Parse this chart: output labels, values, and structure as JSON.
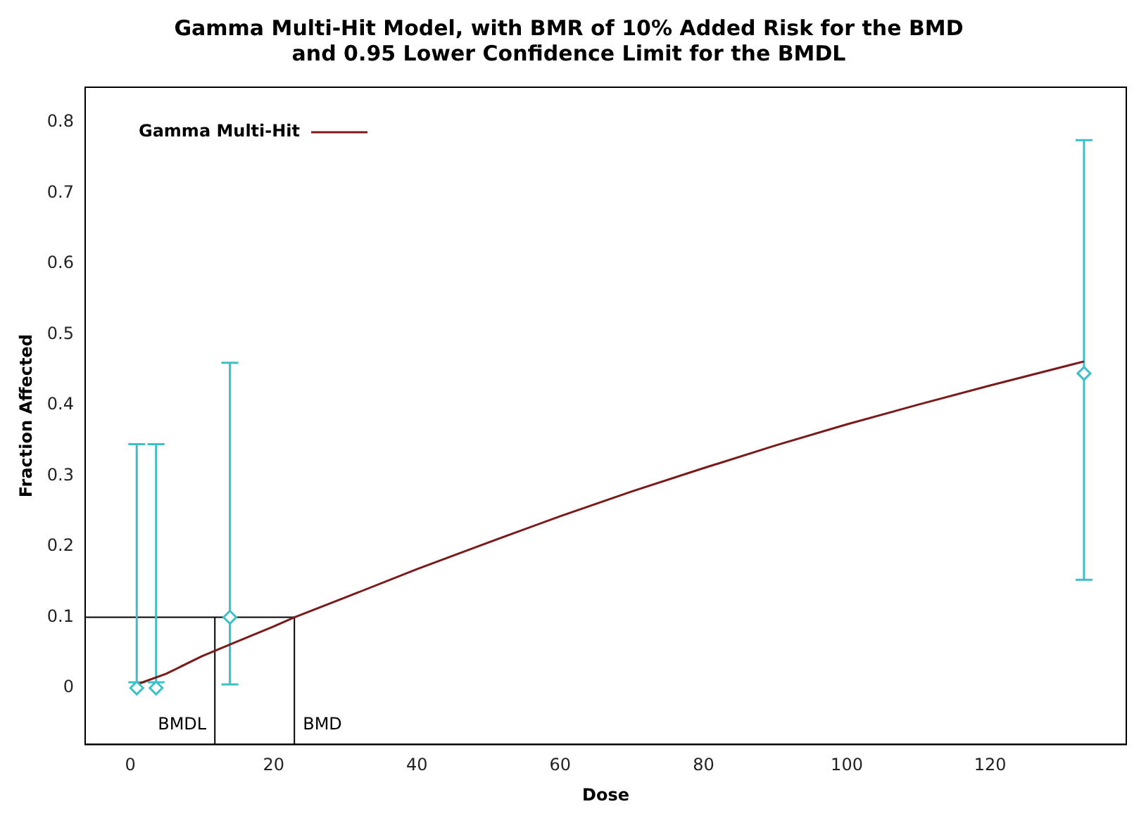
{
  "chart_data": {
    "type": "scatter",
    "title": "Gamma Multi-Hit Model, with BMR of 10% Added Risk for the BMD\nand 0.95 Lower Confidence Limit for the BMDL",
    "xlabel": "Dose",
    "ylabel": "Fraction Affected",
    "series": [
      {
        "color": "#3cc0c8",
        "marker": "diamond",
        "x": [
          0.9,
          3.6,
          13.9,
          133.1
        ],
        "values": [
          0,
          0,
          0.1,
          0.445
        ],
        "errors": [
          [
            0.008,
            0.345
          ],
          [
            0.008,
            0.345
          ],
          [
            0.005,
            0.46
          ],
          [
            0.153,
            0.775
          ]
        ]
      },
      {
        "type": "line",
        "name": "Gamma Multi-Hit",
        "color": "#7b1a1a",
        "marker": "none",
        "x": [
          0.9,
          5,
          10,
          15,
          20,
          22.9,
          30,
          40,
          50,
          60,
          70,
          80,
          90,
          100,
          110,
          120,
          133.1
        ],
        "values": [
          0.005,
          0.02,
          0.045,
          0.066,
          0.087,
          0.1,
          0.128,
          0.168,
          0.206,
          0.243,
          0.278,
          0.311,
          0.343,
          0.373,
          0.401,
          0.428,
          0.462
        ]
      }
    ],
    "ref_lines": [
      {
        "axis": "y",
        "value": 0.1,
        "label": null,
        "color": "#000000"
      },
      {
        "axis": "x",
        "value": 11.8,
        "label": "BMDL",
        "color": "#000000"
      },
      {
        "axis": "x",
        "value": 22.9,
        "label": "BMD",
        "color": "#000000"
      }
    ],
    "xlim": [
      -6.3,
      139
    ],
    "xticks": [
      0,
      20,
      40,
      60,
      80,
      100,
      120
    ],
    "ylim": [
      -0.08,
      0.85
    ],
    "yticks": [
      0,
      0.1,
      0.2,
      0.3,
      0.4,
      0.5,
      0.6,
      0.7,
      0.8
    ],
    "grid": false,
    "legend": "top left"
  }
}
